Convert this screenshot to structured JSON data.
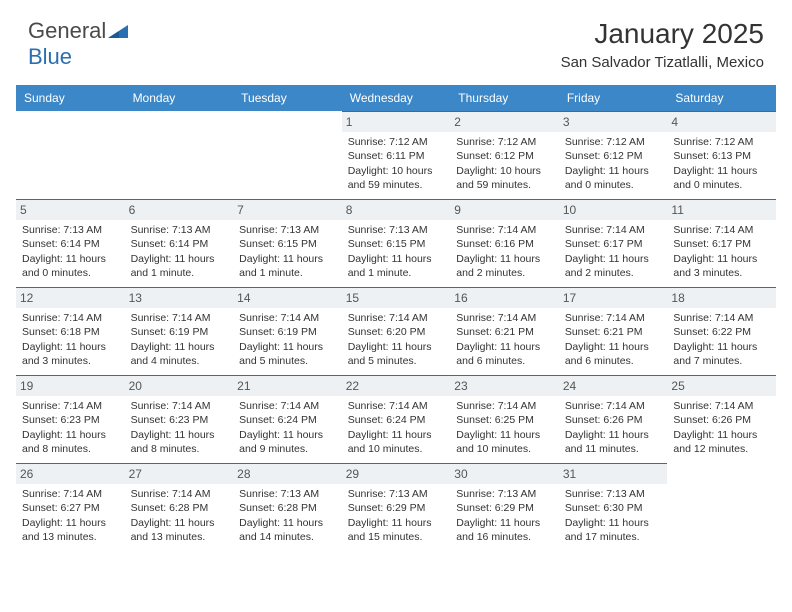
{
  "logo": {
    "part1": "General",
    "part2": "Blue"
  },
  "title": "January 2025",
  "location": "San Salvador Tizatlalli, Mexico",
  "colors": {
    "header_bg": "#3b87c8",
    "header_text": "#ffffff",
    "cell_num_bg": "#eef1f3",
    "cell_border": "#2b6fb0",
    "text": "#333333",
    "logo_gray": "#4a4a4a",
    "logo_blue": "#2b6fb0"
  },
  "day_names": [
    "Sunday",
    "Monday",
    "Tuesday",
    "Wednesday",
    "Thursday",
    "Friday",
    "Saturday"
  ],
  "weeks": [
    [
      {
        "n": "",
        "sunrise": "",
        "sunset": "",
        "daylight": ""
      },
      {
        "n": "",
        "sunrise": "",
        "sunset": "",
        "daylight": ""
      },
      {
        "n": "",
        "sunrise": "",
        "sunset": "",
        "daylight": ""
      },
      {
        "n": "1",
        "sunrise": "Sunrise: 7:12 AM",
        "sunset": "Sunset: 6:11 PM",
        "daylight": "Daylight: 10 hours and 59 minutes."
      },
      {
        "n": "2",
        "sunrise": "Sunrise: 7:12 AM",
        "sunset": "Sunset: 6:12 PM",
        "daylight": "Daylight: 10 hours and 59 minutes."
      },
      {
        "n": "3",
        "sunrise": "Sunrise: 7:12 AM",
        "sunset": "Sunset: 6:12 PM",
        "daylight": "Daylight: 11 hours and 0 minutes."
      },
      {
        "n": "4",
        "sunrise": "Sunrise: 7:12 AM",
        "sunset": "Sunset: 6:13 PM",
        "daylight": "Daylight: 11 hours and 0 minutes."
      }
    ],
    [
      {
        "n": "5",
        "sunrise": "Sunrise: 7:13 AM",
        "sunset": "Sunset: 6:14 PM",
        "daylight": "Daylight: 11 hours and 0 minutes."
      },
      {
        "n": "6",
        "sunrise": "Sunrise: 7:13 AM",
        "sunset": "Sunset: 6:14 PM",
        "daylight": "Daylight: 11 hours and 1 minute."
      },
      {
        "n": "7",
        "sunrise": "Sunrise: 7:13 AM",
        "sunset": "Sunset: 6:15 PM",
        "daylight": "Daylight: 11 hours and 1 minute."
      },
      {
        "n": "8",
        "sunrise": "Sunrise: 7:13 AM",
        "sunset": "Sunset: 6:15 PM",
        "daylight": "Daylight: 11 hours and 1 minute."
      },
      {
        "n": "9",
        "sunrise": "Sunrise: 7:14 AM",
        "sunset": "Sunset: 6:16 PM",
        "daylight": "Daylight: 11 hours and 2 minutes."
      },
      {
        "n": "10",
        "sunrise": "Sunrise: 7:14 AM",
        "sunset": "Sunset: 6:17 PM",
        "daylight": "Daylight: 11 hours and 2 minutes."
      },
      {
        "n": "11",
        "sunrise": "Sunrise: 7:14 AM",
        "sunset": "Sunset: 6:17 PM",
        "daylight": "Daylight: 11 hours and 3 minutes."
      }
    ],
    [
      {
        "n": "12",
        "sunrise": "Sunrise: 7:14 AM",
        "sunset": "Sunset: 6:18 PM",
        "daylight": "Daylight: 11 hours and 3 minutes."
      },
      {
        "n": "13",
        "sunrise": "Sunrise: 7:14 AM",
        "sunset": "Sunset: 6:19 PM",
        "daylight": "Daylight: 11 hours and 4 minutes."
      },
      {
        "n": "14",
        "sunrise": "Sunrise: 7:14 AM",
        "sunset": "Sunset: 6:19 PM",
        "daylight": "Daylight: 11 hours and 5 minutes."
      },
      {
        "n": "15",
        "sunrise": "Sunrise: 7:14 AM",
        "sunset": "Sunset: 6:20 PM",
        "daylight": "Daylight: 11 hours and 5 minutes."
      },
      {
        "n": "16",
        "sunrise": "Sunrise: 7:14 AM",
        "sunset": "Sunset: 6:21 PM",
        "daylight": "Daylight: 11 hours and 6 minutes."
      },
      {
        "n": "17",
        "sunrise": "Sunrise: 7:14 AM",
        "sunset": "Sunset: 6:21 PM",
        "daylight": "Daylight: 11 hours and 6 minutes."
      },
      {
        "n": "18",
        "sunrise": "Sunrise: 7:14 AM",
        "sunset": "Sunset: 6:22 PM",
        "daylight": "Daylight: 11 hours and 7 minutes."
      }
    ],
    [
      {
        "n": "19",
        "sunrise": "Sunrise: 7:14 AM",
        "sunset": "Sunset: 6:23 PM",
        "daylight": "Daylight: 11 hours and 8 minutes."
      },
      {
        "n": "20",
        "sunrise": "Sunrise: 7:14 AM",
        "sunset": "Sunset: 6:23 PM",
        "daylight": "Daylight: 11 hours and 8 minutes."
      },
      {
        "n": "21",
        "sunrise": "Sunrise: 7:14 AM",
        "sunset": "Sunset: 6:24 PM",
        "daylight": "Daylight: 11 hours and 9 minutes."
      },
      {
        "n": "22",
        "sunrise": "Sunrise: 7:14 AM",
        "sunset": "Sunset: 6:24 PM",
        "daylight": "Daylight: 11 hours and 10 minutes."
      },
      {
        "n": "23",
        "sunrise": "Sunrise: 7:14 AM",
        "sunset": "Sunset: 6:25 PM",
        "daylight": "Daylight: 11 hours and 10 minutes."
      },
      {
        "n": "24",
        "sunrise": "Sunrise: 7:14 AM",
        "sunset": "Sunset: 6:26 PM",
        "daylight": "Daylight: 11 hours and 11 minutes."
      },
      {
        "n": "25",
        "sunrise": "Sunrise: 7:14 AM",
        "sunset": "Sunset: 6:26 PM",
        "daylight": "Daylight: 11 hours and 12 minutes."
      }
    ],
    [
      {
        "n": "26",
        "sunrise": "Sunrise: 7:14 AM",
        "sunset": "Sunset: 6:27 PM",
        "daylight": "Daylight: 11 hours and 13 minutes."
      },
      {
        "n": "27",
        "sunrise": "Sunrise: 7:14 AM",
        "sunset": "Sunset: 6:28 PM",
        "daylight": "Daylight: 11 hours and 13 minutes."
      },
      {
        "n": "28",
        "sunrise": "Sunrise: 7:13 AM",
        "sunset": "Sunset: 6:28 PM",
        "daylight": "Daylight: 11 hours and 14 minutes."
      },
      {
        "n": "29",
        "sunrise": "Sunrise: 7:13 AM",
        "sunset": "Sunset: 6:29 PM",
        "daylight": "Daylight: 11 hours and 15 minutes."
      },
      {
        "n": "30",
        "sunrise": "Sunrise: 7:13 AM",
        "sunset": "Sunset: 6:29 PM",
        "daylight": "Daylight: 11 hours and 16 minutes."
      },
      {
        "n": "31",
        "sunrise": "Sunrise: 7:13 AM",
        "sunset": "Sunset: 6:30 PM",
        "daylight": "Daylight: 11 hours and 17 minutes."
      },
      {
        "n": "",
        "sunrise": "",
        "sunset": "",
        "daylight": ""
      }
    ]
  ]
}
